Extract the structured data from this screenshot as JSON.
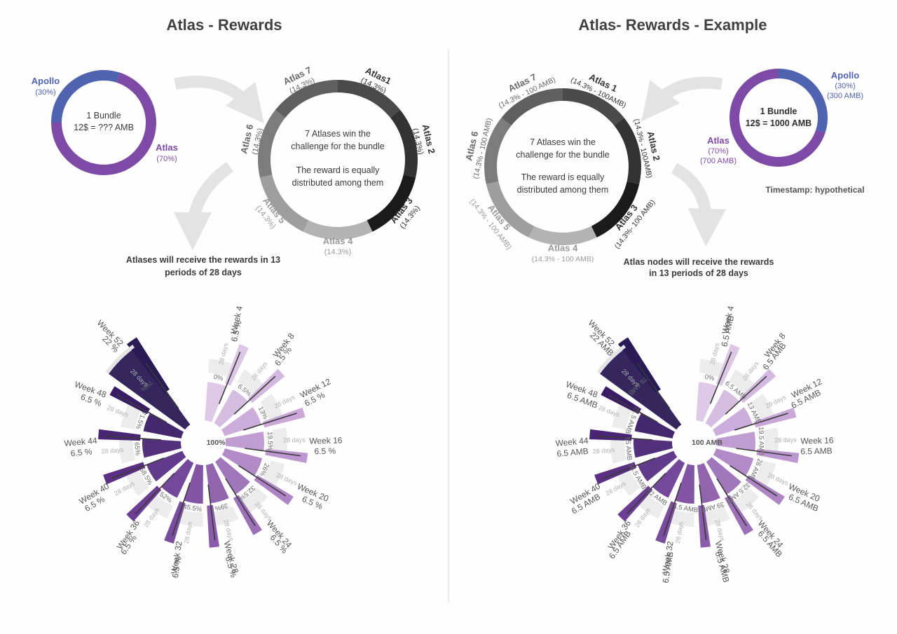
{
  "left": {
    "title": "Atlas - Rewards",
    "bundle": {
      "line1": "1 Bundle",
      "line2": "12$ = ??? AMB"
    },
    "apollo": {
      "name": "Apollo",
      "share": "(30%)",
      "color": "#4f63b0"
    },
    "atlas": {
      "name": "Atlas",
      "share": "(70%)",
      "color": "#7d4aa6"
    },
    "atlases": [
      {
        "name": "Atlas1",
        "share": "(14.3%)",
        "color": "#4a4a4a"
      },
      {
        "name": "Atlas 2",
        "share": "(14.3%)",
        "color": "#333333"
      },
      {
        "name": "Atlas 3",
        "share": "(14.3%)",
        "color": "#1b1b1b"
      },
      {
        "name": "Atlas 4",
        "share": "(14.3%)",
        "color": "#b3b3b3"
      },
      {
        "name": "Atlas 5",
        "share": "(14.3%)",
        "color": "#9e9e9e"
      },
      {
        "name": "Atlas 6",
        "share": "(14.3%)",
        "color": "#7c7c7c"
      },
      {
        "name": "Atlas 7",
        "share": "(14.3%)",
        "color": "#5f5f5f"
      }
    ],
    "ring_text": [
      "7 Atlases win the",
      "challenge for the bundle",
      "",
      "The reward is equally",
      "distributed among them"
    ],
    "periods_text": [
      "Atlases will receive the rewards in 13",
      "periods of 28  days"
    ],
    "center_label": "100%",
    "periods": [
      {
        "week": "Week 4",
        "amount": "6.5 %",
        "cumulative": "0%",
        "days": "28 days"
      },
      {
        "week": "Week 8",
        "amount": "6.5 %",
        "cumulative": "6.5%",
        "days": "28 days"
      },
      {
        "week": "Week 12",
        "amount": "6.5 %",
        "cumulative": "13%",
        "days": "28 days"
      },
      {
        "week": "Week 16",
        "amount": "6.5 %",
        "cumulative": "19.5%",
        "days": "28 days"
      },
      {
        "week": "Week 20",
        "amount": "6.5 %",
        "cumulative": "26%",
        "days": "28 days"
      },
      {
        "week": "Week 24",
        "amount": "6.5 %",
        "cumulative": "32.5%",
        "days": "28 days"
      },
      {
        "week": "Week 28",
        "amount": "6.5 %",
        "cumulative": "39%",
        "days": "28 days"
      },
      {
        "week": "Week 32",
        "amount": "6.5 %",
        "cumulative": "45.5%",
        "days": "28 days"
      },
      {
        "week": "Week 36",
        "amount": "6.5 %",
        "cumulative": "52%",
        "days": "28 days"
      },
      {
        "week": "Week 40",
        "amount": "6.5 %",
        "cumulative": "58.5%",
        "days": "28 days"
      },
      {
        "week": "Week 44",
        "amount": "6.5 %",
        "cumulative": "65%",
        "days": "28 days"
      },
      {
        "week": "Week 48",
        "amount": "6.5 %",
        "cumulative": "71.5%",
        "days": "28 days"
      },
      {
        "week": "Week 52",
        "amount": "22 %",
        "cumulative": "78%",
        "days": "28 days"
      }
    ]
  },
  "right": {
    "title": "Atlas- Rewards - Example",
    "bundle": {
      "line1": "1 Bundle",
      "line2": "12$ = 1000 AMB"
    },
    "apollo": {
      "name": "Apollo",
      "share": "(30%)",
      "amount": "(300 AMB)",
      "color": "#4f63b0"
    },
    "atlas": {
      "name": "Atlas",
      "share": "(70%)",
      "amount": "(700 AMB)",
      "color": "#7d4aa6"
    },
    "atlases": [
      {
        "name": "Atlas 1",
        "share": "(14.3% - 100AMB)",
        "color": "#4a4a4a"
      },
      {
        "name": "Atlas 2",
        "share": "(14.3% - 100AMB)",
        "color": "#333333"
      },
      {
        "name": "Atlas 3",
        "share": "(14.3%- 100 AMB)",
        "color": "#1b1b1b"
      },
      {
        "name": "Atlas 4",
        "share": "(14.3% - 100 AMB)",
        "color": "#b3b3b3"
      },
      {
        "name": "Atlas 5",
        "share": "(14.3% - 100 AMB)",
        "color": "#9e9e9e"
      },
      {
        "name": "Atlas 6",
        "share": "(14.3% - 100 AMB)",
        "color": "#7c7c7c"
      },
      {
        "name": "Atlas 7",
        "share": "(14.3% - 100 AMB)",
        "color": "#5f5f5f"
      }
    ],
    "ring_text": [
      "7 Atlases win the",
      "challenge for the bundle",
      "",
      "The reward is equally",
      "distributed among them"
    ],
    "timestamp": "Timestamp: hypothetical",
    "periods_text": [
      "Atlas nodes will receive the rewards",
      "in 13 periods of 28  days"
    ],
    "center_label": "100 AMB",
    "periods": [
      {
        "week": "Week 4",
        "amount": "6.5 AMB",
        "cumulative": "0%",
        "days": "28 days"
      },
      {
        "week": "Week 8",
        "amount": "6.5 AMB",
        "cumulative": "6.5 AMB",
        "days": "28 days"
      },
      {
        "week": "Week 12",
        "amount": "6.5 AMB",
        "cumulative": "13 AMB",
        "days": "28 days"
      },
      {
        "week": "Week 16",
        "amount": "6.5 AMB",
        "cumulative": "19.5 AMB",
        "days": "28 days"
      },
      {
        "week": "Week 20",
        "amount": "6.5 AMB",
        "cumulative": "26 AMB",
        "days": "28 days"
      },
      {
        "week": "Week 24",
        "amount": "6.5 AMB",
        "cumulative": "32.5 AMB",
        "days": "28 days"
      },
      {
        "week": "Week 28",
        "amount": "6.5 AMB",
        "cumulative": "39 AMB",
        "days": "28 days"
      },
      {
        "week": "Week 32",
        "amount": "6.5 AMB",
        "cumulative": "45.5 AMB",
        "days": "28 days"
      },
      {
        "week": "Week 36",
        "amount": "6.5 AMB",
        "cumulative": "52 AMB",
        "days": "28 days"
      },
      {
        "week": "Week 40",
        "amount": "6.5 AMB",
        "cumulative": "58.5 AMB",
        "days": "28 days"
      },
      {
        "week": "Week 44",
        "amount": "6.5 AMB",
        "cumulative": "65 AMB",
        "days": "28 days"
      },
      {
        "week": "Week 48",
        "amount": "6.5 AMB",
        "cumulative": "71.5 AMB",
        "days": "28 days"
      },
      {
        "week": "Week 52",
        "amount": "22 AMB",
        "cumulative": "78 AMB",
        "days": "28 days"
      }
    ]
  },
  "radial_colors": [
    "#dcc6e6",
    "#d3b8df",
    "#c9a8d8",
    "#bd97cf",
    "#ad84c4",
    "#9c70b8",
    "#8a5daa",
    "#7a4c9e",
    "#6b3d93",
    "#5a2f84",
    "#4a2575",
    "#3a1c66",
    "#2a1a55"
  ]
}
